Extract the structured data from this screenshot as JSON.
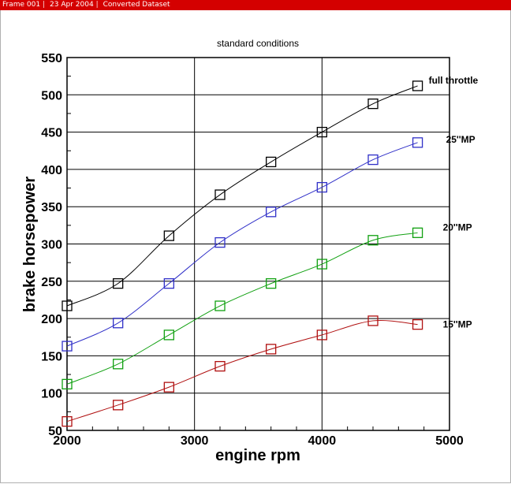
{
  "window": {
    "frame": "Frame 001",
    "date": "23 Apr 2004",
    "dataset": "Converted Dataset"
  },
  "chart_data": {
    "type": "line",
    "title": "standard conditions",
    "xlabel": "engine rpm",
    "ylabel": "brake horsepower",
    "xlim": [
      2000,
      5000
    ],
    "ylim": [
      50,
      550
    ],
    "xticks": [
      2000,
      3000,
      4000,
      5000
    ],
    "yticks": [
      50,
      100,
      150,
      200,
      250,
      300,
      350,
      400,
      450,
      500,
      550
    ],
    "grid": true,
    "x": [
      2000,
      2400,
      2800,
      3200,
      3600,
      4000,
      4400,
      4750
    ],
    "series": [
      {
        "name": "full throttle",
        "color": "#000000",
        "values": [
          217,
          247,
          311,
          366,
          410,
          450,
          488,
          512
        ]
      },
      {
        "name": "25''MP",
        "color": "#3030c8",
        "values": [
          163,
          194,
          247,
          302,
          343,
          376,
          413,
          436
        ]
      },
      {
        "name": "20''MP",
        "color": "#10a010",
        "values": [
          112,
          139,
          178,
          217,
          247,
          273,
          305,
          315
        ]
      },
      {
        "name": "15''MP",
        "color": "#b01010",
        "values": [
          62,
          84,
          108,
          136,
          159,
          178,
          197,
          192
        ]
      }
    ]
  }
}
